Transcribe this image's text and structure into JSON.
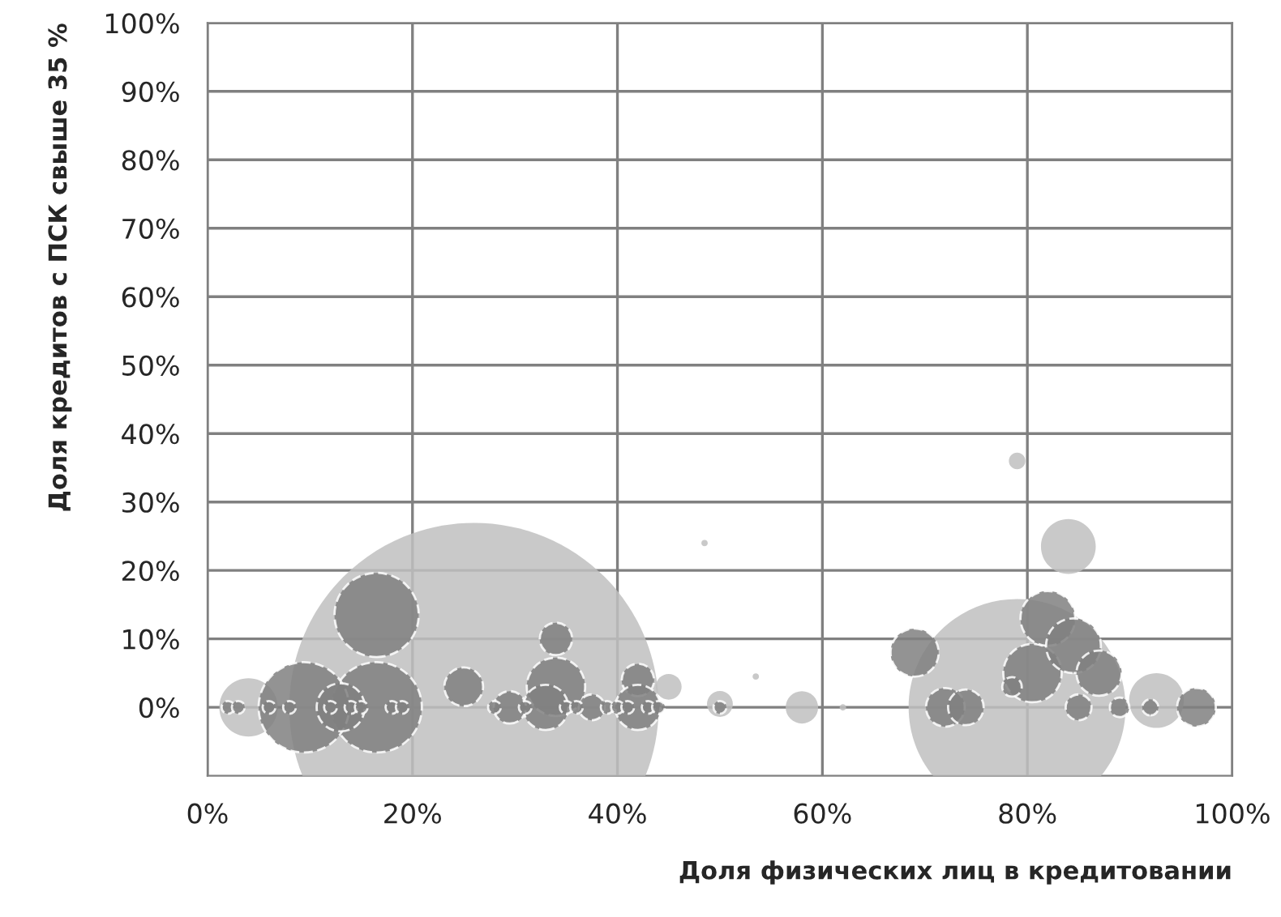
{
  "chart_data": {
    "type": "bubble",
    "xlabel": "Доля физических лиц в кредитовании",
    "ylabel": "Доля кредитов с ПСК свыше 35 %",
    "xlim": [
      0,
      100
    ],
    "xticks": [
      {
        "value": 0,
        "label": "0%"
      },
      {
        "value": 20,
        "label": "20%"
      },
      {
        "value": 40,
        "label": "40%"
      },
      {
        "value": 60,
        "label": "60%"
      },
      {
        "value": 80,
        "label": "80%"
      },
      {
        "value": 100,
        "label": "100%"
      }
    ],
    "ylim": [
      -10,
      100
    ],
    "yticks": [
      {
        "value": 0,
        "label": "0%"
      },
      {
        "value": 10,
        "label": "10%"
      },
      {
        "value": 20,
        "label": "20%"
      },
      {
        "value": 30,
        "label": "30%"
      },
      {
        "value": 40,
        "label": "40%"
      },
      {
        "value": 50,
        "label": "50%"
      },
      {
        "value": 60,
        "label": "60%"
      },
      {
        "value": 70,
        "label": "70%"
      },
      {
        "value": 80,
        "label": "80%"
      },
      {
        "value": 90,
        "label": "90%"
      },
      {
        "value": 100,
        "label": "100%"
      }
    ],
    "grid": true,
    "legend": false,
    "series": [
      {
        "color": "#bfbfbf",
        "line_style": "none",
        "x": [
          26,
          79,
          4,
          84,
          79,
          48.5,
          53.5,
          58,
          62,
          92.6,
          45,
          50
        ],
        "values": [
          0,
          0,
          0,
          23.5,
          36,
          24,
          4.5,
          0,
          0,
          1,
          3,
          0.5
        ],
        "sizes": [
          1,
          0.345,
          0.025,
          0.022,
          0.002,
          0.0003,
          0.0003,
          0.0077,
          0.0003,
          0.022,
          0.0049,
          0.0049
        ]
      },
      {
        "color": "#808080",
        "line_style": "dashed",
        "x": [
          16.5,
          16.5,
          9.4,
          13,
          34,
          34,
          33,
          25,
          29.5,
          37.5,
          42,
          42,
          69,
          72,
          74,
          80.5,
          82,
          84.5,
          87,
          85,
          89,
          92,
          78.5,
          96.5,
          2,
          3,
          6,
          8,
          12,
          14,
          15,
          18,
          19,
          28,
          31,
          35,
          36,
          39,
          40,
          41,
          43,
          44,
          50
        ],
        "values": [
          13.5,
          0,
          0,
          0,
          10,
          3,
          0,
          3,
          0,
          0,
          4,
          0,
          8,
          0,
          0,
          5,
          13,
          9,
          5,
          0,
          0,
          0,
          3,
          0,
          0,
          0,
          0,
          0,
          0,
          0,
          0,
          0,
          0,
          0,
          0,
          0,
          0,
          0,
          0,
          0,
          0,
          0,
          0
        ],
        "sizes": [
          0.052,
          0.06,
          0.06,
          0.017,
          0.0077,
          0.025,
          0.015,
          0.011,
          0.0077,
          0.0049,
          0.0077,
          0.015,
          0.017,
          0.011,
          0.0093,
          0.025,
          0.022,
          0.022,
          0.015,
          0.0049,
          0.0028,
          0.0019,
          0.0028,
          0.011,
          0.0012,
          0.0012,
          0.0012,
          0.0012,
          0.0012,
          0.0012,
          0.0012,
          0.0012,
          0.0012,
          0.0012,
          0.0012,
          0.0012,
          0.0012,
          0.0012,
          0.0012,
          0.0012,
          0.0012,
          0.0012,
          0.0012
        ]
      }
    ]
  }
}
